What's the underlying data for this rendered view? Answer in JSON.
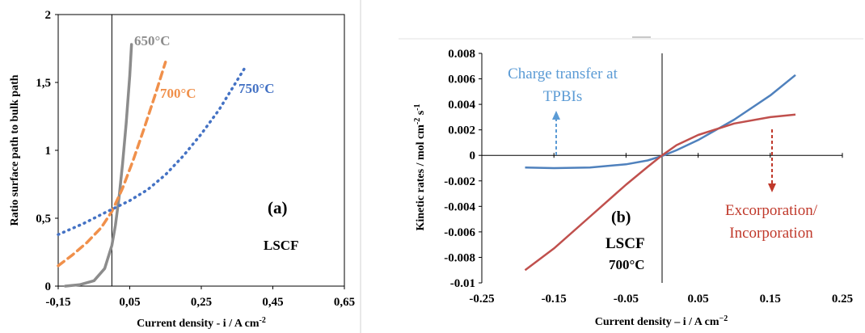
{
  "chart_data": [
    {
      "type": "line",
      "xlabel": "Current density - i / A cm",
      "xlabel_sup": "-2",
      "ylabel": "Ratio surface path to bulk path",
      "xlim": [
        -0.15,
        0.65
      ],
      "ylim": [
        0,
        2
      ],
      "x_ticks": [
        "-0,15",
        "0,05",
        "0,25",
        "0,45",
        "0,65"
      ],
      "x_tick_values": [
        -0.15,
        0.05,
        0.25,
        0.45,
        0.65
      ],
      "y_ticks": [
        "0",
        "0,5",
        "1",
        "1,5",
        "2"
      ],
      "y_tick_values": [
        0,
        0.5,
        1,
        1.5,
        2
      ],
      "grid": false,
      "panel_label": "(a)",
      "annotation": "LSCF",
      "series": [
        {
          "name": "650°C",
          "color": "#8c8c8c",
          "dash": "solid",
          "x": [
            -0.13,
            -0.09,
            -0.05,
            -0.02,
            0.0,
            0.01,
            0.02,
            0.03,
            0.04,
            0.05,
            0.055
          ],
          "y": [
            0.0,
            0.01,
            0.04,
            0.13,
            0.3,
            0.45,
            0.65,
            0.9,
            1.2,
            1.55,
            1.78
          ]
        },
        {
          "name": "700°C",
          "color": "#f0904b",
          "dash": "dashed",
          "x": [
            -0.15,
            -0.11,
            -0.07,
            -0.03,
            0.0,
            0.03,
            0.06,
            0.09,
            0.12,
            0.15
          ],
          "y": [
            0.15,
            0.23,
            0.32,
            0.43,
            0.55,
            0.72,
            0.93,
            1.16,
            1.4,
            1.65
          ]
        },
        {
          "name": "750°C",
          "color": "#4472c4",
          "dash": "dotted",
          "x": [
            -0.15,
            -0.08,
            -0.02,
            0.05,
            0.1,
            0.15,
            0.2,
            0.25,
            0.3,
            0.37
          ],
          "y": [
            0.38,
            0.46,
            0.54,
            0.63,
            0.71,
            0.82,
            0.96,
            1.12,
            1.3,
            1.6
          ]
        }
      ]
    },
    {
      "type": "line",
      "xlabel": "Current density – i / A cm",
      "xlabel_sup": "−2",
      "ylabel": "Kinetic rates / mol cm",
      "ylabel_sup1": "-2",
      "ylabel_mid": " s",
      "ylabel_sup2": "-1",
      "xlim": [
        -0.25,
        0.25
      ],
      "ylim": [
        -0.01,
        0.008
      ],
      "x_ticks": [
        "-0.25",
        "-0.15",
        "-0.05",
        "0.05",
        "0.15",
        "0.25"
      ],
      "x_tick_values": [
        -0.25,
        -0.15,
        -0.05,
        0.05,
        0.15,
        0.25
      ],
      "y_ticks": [
        "0.008",
        "0.006",
        "0.004",
        "0.002",
        "0",
        "-0.002",
        "-0.004",
        "-0.006",
        "-0.008",
        "-0.01"
      ],
      "y_tick_values": [
        0.008,
        0.006,
        0.004,
        0.002,
        0,
        -0.002,
        -0.004,
        -0.006,
        -0.008,
        -0.01
      ],
      "grid": false,
      "panel_label": "(b)",
      "annotation_lines": [
        "LSCF",
        "700°C"
      ],
      "callouts": [
        {
          "lines": [
            "Charge transfer at",
            "TPBIs"
          ],
          "color": "#5b9bd5"
        },
        {
          "lines": [
            "Excorporation/",
            "Incorporation"
          ],
          "color": "#c0392b"
        }
      ],
      "series": [
        {
          "name": "Charge transfer at TPBIs",
          "color": "#4f81bd",
          "x": [
            -0.19,
            -0.15,
            -0.1,
            -0.05,
            -0.02,
            0.0,
            0.02,
            0.05,
            0.1,
            0.15,
            0.185
          ],
          "y": [
            -0.00095,
            -0.001,
            -0.00095,
            -0.0007,
            -0.0004,
            -5e-05,
            0.0004,
            0.0012,
            0.0028,
            0.0047,
            0.0063
          ]
        },
        {
          "name": "Excorporation/Incorporation",
          "color": "#c0504d",
          "x": [
            -0.19,
            -0.15,
            -0.1,
            -0.05,
            -0.02,
            0.0,
            0.02,
            0.05,
            0.1,
            0.15,
            0.185
          ],
          "y": [
            -0.009,
            -0.0073,
            -0.0048,
            -0.0023,
            -0.0009,
            0.0,
            0.0008,
            0.0016,
            0.0025,
            0.003,
            0.0032
          ]
        }
      ]
    }
  ]
}
